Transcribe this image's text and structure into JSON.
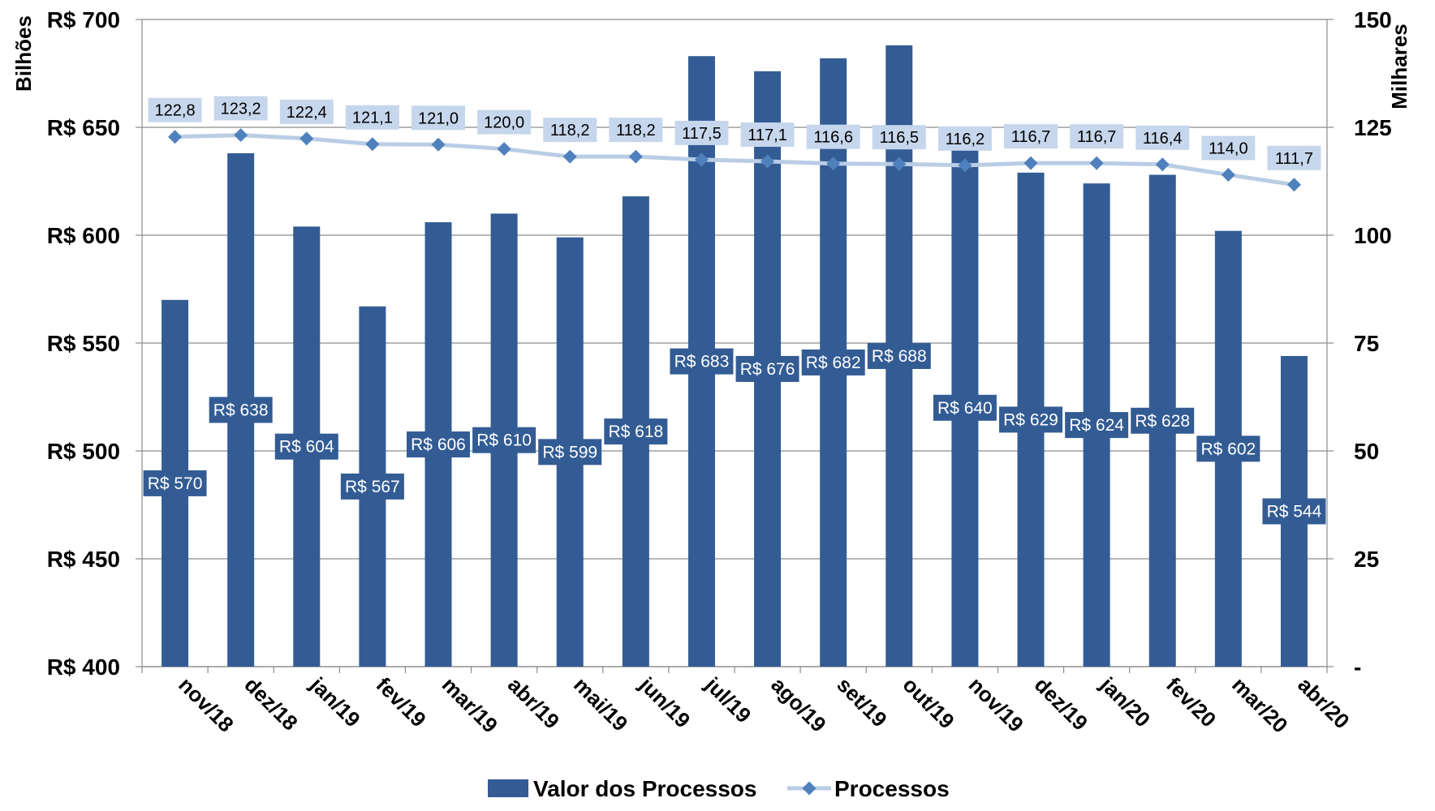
{
  "chart_data": {
    "type": "bar",
    "categories": [
      "nov/18",
      "dez/18",
      "jan/19",
      "fev/19",
      "mar/19",
      "abr/19",
      "mai/19",
      "jun/19",
      "jul/19",
      "ago/19",
      "set/19",
      "out/19",
      "nov/19",
      "dez/19",
      "jan/20",
      "fev/20",
      "mar/20",
      "abr/20"
    ],
    "series": [
      {
        "name": "Valor dos Processos",
        "type": "bar",
        "axis": "left",
        "color": "#335C94",
        "values": [
          570,
          638,
          604,
          567,
          606,
          610,
          599,
          618,
          683,
          676,
          682,
          688,
          640,
          629,
          624,
          628,
          602,
          544
        ],
        "labels": [
          "R$ 570",
          "R$ 638",
          "R$ 604",
          "R$ 567",
          "R$ 606",
          "R$ 610",
          "R$ 599",
          "R$ 618",
          "R$ 683",
          "R$ 676",
          "R$ 682",
          "R$ 688",
          "R$ 640",
          "R$ 629",
          "R$ 624",
          "R$ 628",
          "R$ 602",
          "R$ 544"
        ]
      },
      {
        "name": "Processos",
        "type": "line",
        "axis": "right",
        "color": "#B9CDE5",
        "marker_color": "#4F81BD",
        "values": [
          122.8,
          123.2,
          122.4,
          121.1,
          121.0,
          120.0,
          118.2,
          118.2,
          117.5,
          117.1,
          116.6,
          116.5,
          116.2,
          116.7,
          116.7,
          116.4,
          114.0,
          111.7
        ],
        "labels": [
          "122,8",
          "123,2",
          "122,4",
          "121,1",
          "121,0",
          "120,0",
          "118,2",
          "118,2",
          "117,5",
          "117,1",
          "116,6",
          "116,5",
          "116,2",
          "116,7",
          "116,7",
          "116,4",
          "114,0",
          "111,7"
        ]
      }
    ],
    "y_left": {
      "label": "Bilhões",
      "ylim": [
        400,
        700
      ],
      "ticks": [
        400,
        450,
        500,
        550,
        600,
        650,
        700
      ],
      "tick_labels": [
        "R$ 400",
        "R$ 450",
        "R$ 500",
        "R$ 550",
        "R$ 600",
        "R$ 650",
        "R$ 700"
      ]
    },
    "y_right": {
      "label": "Milhares",
      "ylim": [
        0,
        150
      ],
      "ticks": [
        0,
        25,
        50,
        75,
        100,
        125,
        150
      ],
      "tick_labels": [
        "-",
        "25",
        "50",
        "75",
        "100",
        "125",
        "150"
      ]
    },
    "grid": true,
    "legend": "bottom"
  }
}
